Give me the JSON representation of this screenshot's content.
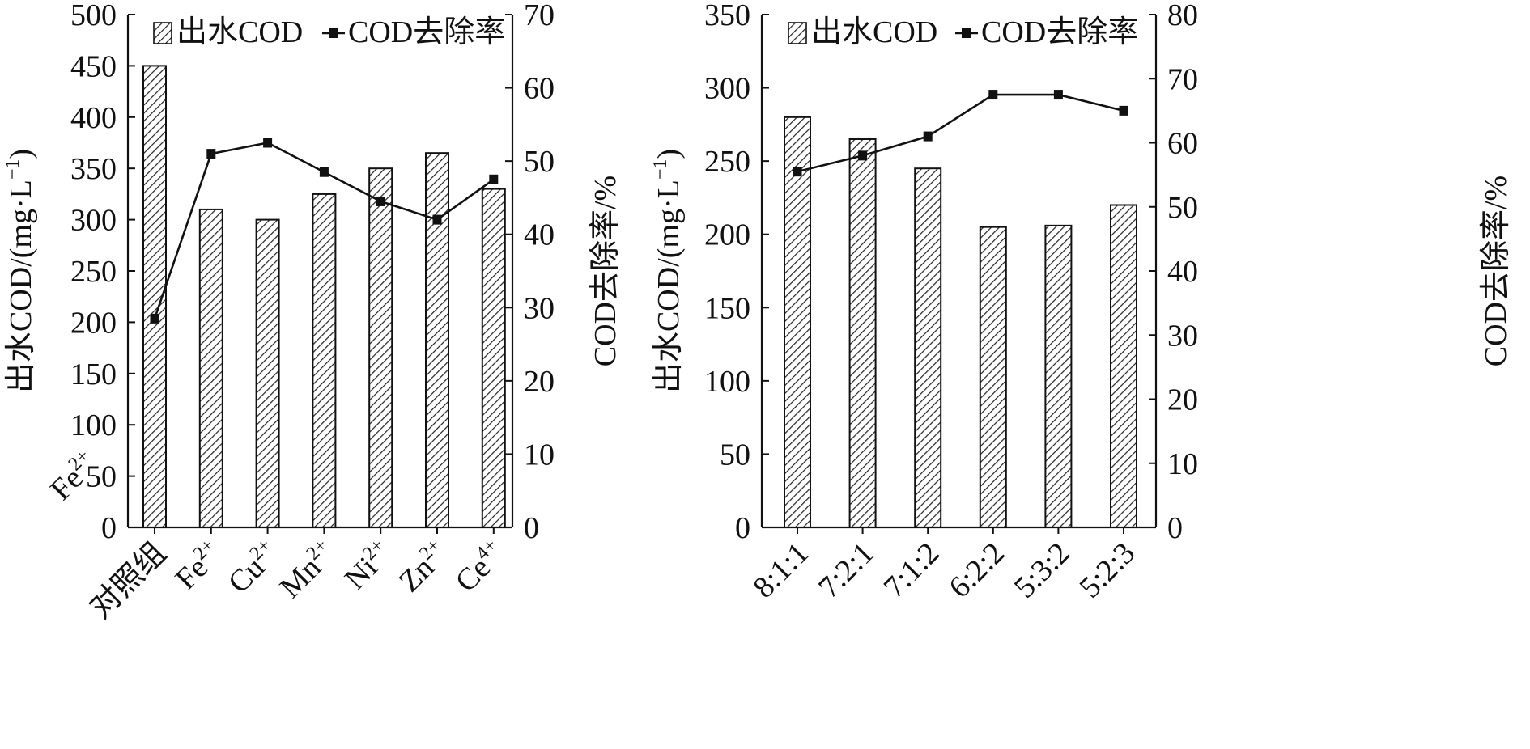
{
  "chart_data": [
    {
      "type": "bar",
      "categories": [
        "对照组",
        "Fe",
        "Cu",
        "Mn",
        "Ni",
        "Zn",
        "Ce"
      ],
      "category_superscripts": [
        "",
        "2+",
        "2+",
        "2+",
        "2+",
        "2+",
        "4+"
      ],
      "series": [
        {
          "name": "出水COD",
          "kind": "bar",
          "axis": "left",
          "values": [
            450,
            310,
            300,
            325,
            350,
            365,
            330
          ]
        },
        {
          "name": "COD去除率",
          "kind": "line",
          "axis": "right",
          "values": [
            28.5,
            51,
            52.5,
            48.5,
            44.5,
            42,
            47.5
          ]
        }
      ],
      "ylabel": "出水COD/(mg·L",
      "ylabel_sup": "−1",
      "ylabel_close": ")",
      "y2label": "COD去除率/%",
      "ylim": [
        0,
        500
      ],
      "y2lim": [
        0,
        70
      ],
      "yticks": [
        "0",
        "50",
        "100",
        "150",
        "200",
        "250",
        "300",
        "350",
        "400",
        "450",
        "500"
      ],
      "y2ticks": [
        "0",
        "10",
        "20",
        "30",
        "40",
        "50",
        "60",
        "70"
      ],
      "annotation": "Fe",
      "annotation_sup": "2+",
      "legend_position": "top"
    },
    {
      "type": "bar",
      "categories": [
        "8:1:1",
        "7:2:1",
        "7:1:2",
        "6:2:2",
        "5:3:2",
        "5:2:3"
      ],
      "series": [
        {
          "name": "出水COD",
          "kind": "bar",
          "axis": "left",
          "values": [
            280,
            265,
            245,
            205,
            206,
            220
          ]
        },
        {
          "name": "COD去除率",
          "kind": "line",
          "axis": "right",
          "values": [
            55.5,
            58,
            61,
            67.5,
            67.5,
            65
          ]
        }
      ],
      "ylabel": "出水COD/(mg·L",
      "ylabel_sup": "−1",
      "ylabel_close": ")",
      "y2label": "COD去除率/%",
      "ylim": [
        0,
        350
      ],
      "y2lim": [
        0,
        80
      ],
      "yticks": [
        "0",
        "50",
        "100",
        "150",
        "200",
        "250",
        "300",
        "350"
      ],
      "y2ticks": [
        "0",
        "10",
        "20",
        "30",
        "40",
        "50",
        "60",
        "70",
        "80"
      ],
      "legend_position": "top"
    }
  ]
}
